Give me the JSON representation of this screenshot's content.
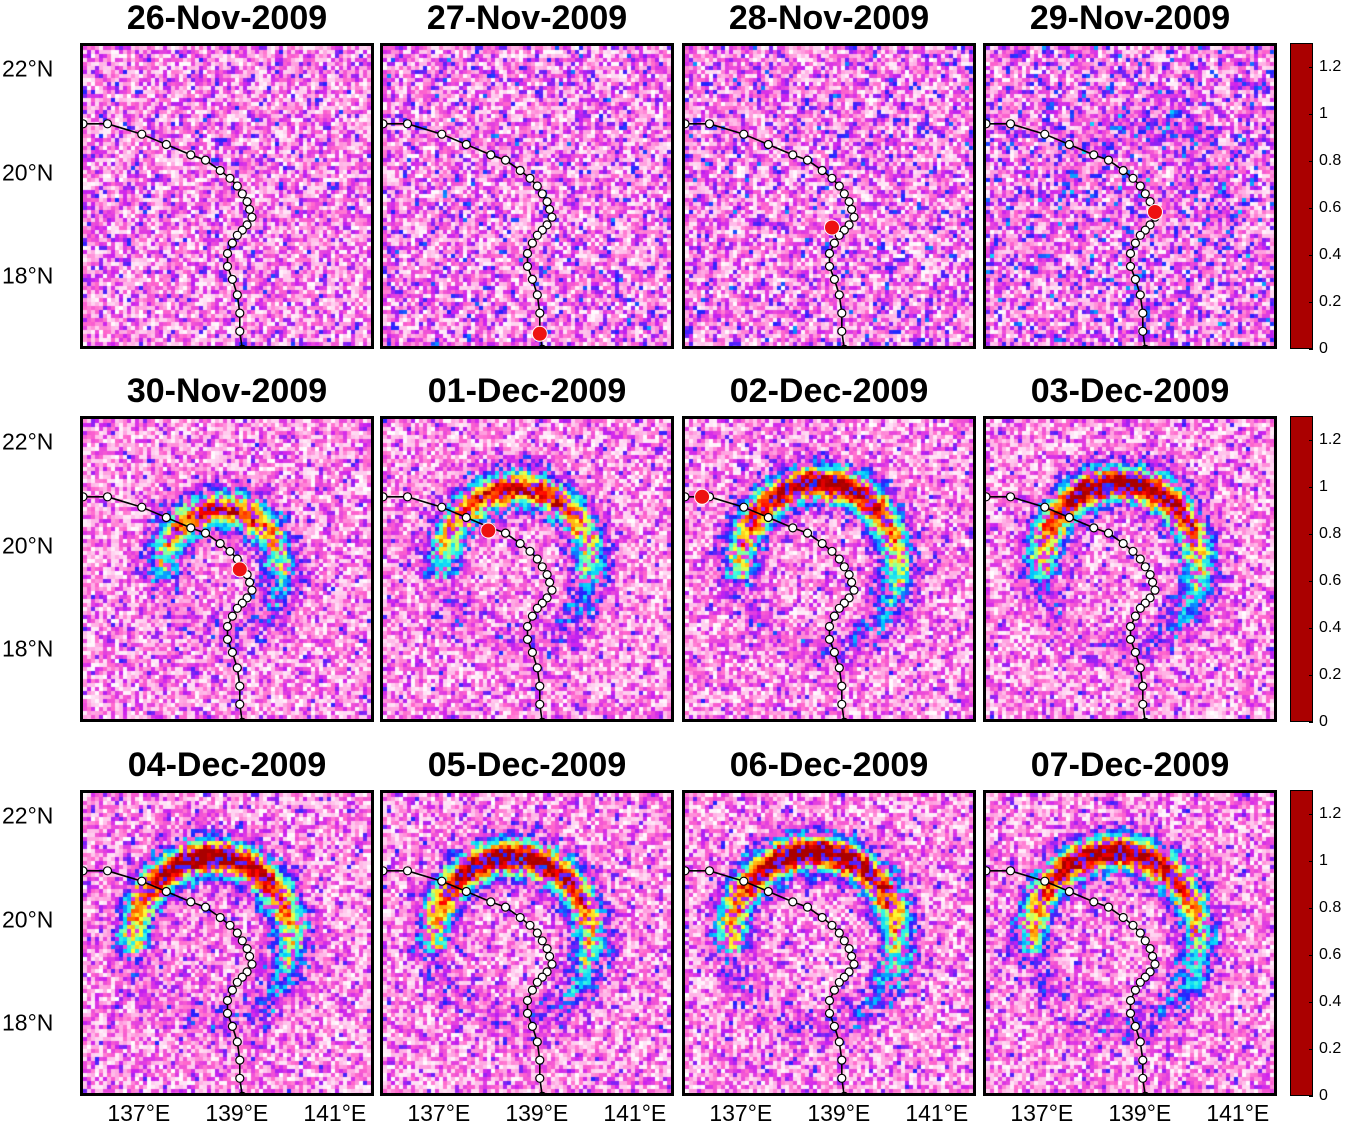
{
  "chart_data": {
    "type": "heatmap",
    "layout": "3 rows x 4 columns of map panels",
    "panel_titles": [
      "26-Nov-2009",
      "27-Nov-2009",
      "28-Nov-2009",
      "29-Nov-2009",
      "30-Nov-2009",
      "01-Dec-2009",
      "02-Dec-2009",
      "03-Dec-2009",
      "04-Dec-2009",
      "05-Dec-2009",
      "06-Dec-2009",
      "07-Dec-2009"
    ],
    "x_axis": {
      "range": [
        135.8,
        141.8
      ],
      "tick_values": [
        137,
        139,
        141
      ],
      "tick_labels": [
        "137°E",
        "139°E",
        "141°E"
      ]
    },
    "y_axis": {
      "range": [
        16.6,
        22.5
      ],
      "tick_values": [
        22,
        20,
        18
      ],
      "tick_labels": [
        "22°N",
        "20°N",
        "18°N"
      ]
    },
    "colorbar": {
      "range": [
        0,
        1.3
      ],
      "tick_values": [
        0,
        0.2,
        0.4,
        0.6,
        0.8,
        1,
        1.2
      ],
      "tick_labels": [
        "0",
        "0.2",
        "0.4",
        "0.6",
        "0.8",
        "1",
        "1.2"
      ],
      "colormap": [
        "#ffffff",
        "#ff66cc",
        "#cc22ee",
        "#2222ff",
        "#00ccff",
        "#44ffdd",
        "#ffff33",
        "#ff8800",
        "#ff0000",
        "#aa0000"
      ]
    },
    "track": {
      "points": [
        [
          135.8,
          21.0
        ],
        [
          136.3,
          21.0
        ],
        [
          137.0,
          20.8
        ],
        [
          137.5,
          20.6
        ],
        [
          138.0,
          20.4
        ],
        [
          138.3,
          20.3
        ],
        [
          138.6,
          20.1
        ],
        [
          138.8,
          19.95
        ],
        [
          138.95,
          19.8
        ],
        [
          139.05,
          19.65
        ],
        [
          139.15,
          19.5
        ],
        [
          139.2,
          19.35
        ],
        [
          139.25,
          19.2
        ],
        [
          139.15,
          19.05
        ],
        [
          139.05,
          18.95
        ],
        [
          138.95,
          18.85
        ],
        [
          138.85,
          18.7
        ],
        [
          138.75,
          18.5
        ],
        [
          138.75,
          18.25
        ],
        [
          138.85,
          18.0
        ],
        [
          138.95,
          17.7
        ],
        [
          139.0,
          17.35
        ],
        [
          139.0,
          17.0
        ],
        [
          139.05,
          16.65
        ]
      ],
      "marker_color": "#ffffff",
      "line_color": "#000000"
    },
    "current_position": [
      {
        "panel": "26-Nov-2009",
        "lon": null,
        "lat": null
      },
      {
        "panel": "27-Nov-2009",
        "lon": 139.0,
        "lat": 16.95
      },
      {
        "panel": "28-Nov-2009",
        "lon": 138.8,
        "lat": 19.0
      },
      {
        "panel": "29-Nov-2009",
        "lon": 139.25,
        "lat": 19.3
      },
      {
        "panel": "30-Nov-2009",
        "lon": 139.0,
        "lat": 19.6
      },
      {
        "panel": "01-Dec-2009",
        "lon": 137.95,
        "lat": 20.35
      },
      {
        "panel": "02-Dec-2009",
        "lon": 136.15,
        "lat": 21.0
      },
      {
        "panel": "03-Dec-2009",
        "lon": null,
        "lat": null
      },
      {
        "panel": "04-Dec-2009",
        "lon": null,
        "lat": null
      },
      {
        "panel": "05-Dec-2009",
        "lon": null,
        "lat": null
      },
      {
        "panel": "06-Dec-2009",
        "lon": null,
        "lat": null
      },
      {
        "panel": "07-Dec-2009",
        "lon": null,
        "lat": null
      }
    ],
    "ring": {
      "center_per_panel": [
        [
          139.0,
          19.5
        ],
        [
          139.0,
          19.5
        ],
        [
          139.0,
          19.5
        ],
        [
          139.0,
          19.5
        ],
        [
          138.6,
          19.6
        ],
        [
          138.5,
          19.7
        ],
        [
          138.5,
          19.7
        ],
        [
          138.5,
          19.7
        ],
        [
          138.4,
          19.7
        ],
        [
          138.4,
          19.7
        ],
        [
          138.4,
          19.7
        ],
        [
          138.4,
          19.7
        ]
      ],
      "radius_deg_per_panel": [
        1.6,
        1.6,
        1.6,
        1.6,
        1.2,
        1.5,
        1.6,
        1.6,
        1.6,
        1.6,
        1.7,
        1.7
      ],
      "peak_value_per_panel": [
        0.0,
        0.0,
        0.0,
        0.1,
        1.0,
        1.05,
        1.2,
        1.25,
        1.25,
        1.25,
        1.25,
        1.2
      ]
    },
    "background_noise_level": [
      0.5,
      0.55,
      0.55,
      0.6,
      0.45,
      0.45,
      0.45,
      0.45,
      0.45,
      0.45,
      0.45,
      0.45
    ]
  }
}
